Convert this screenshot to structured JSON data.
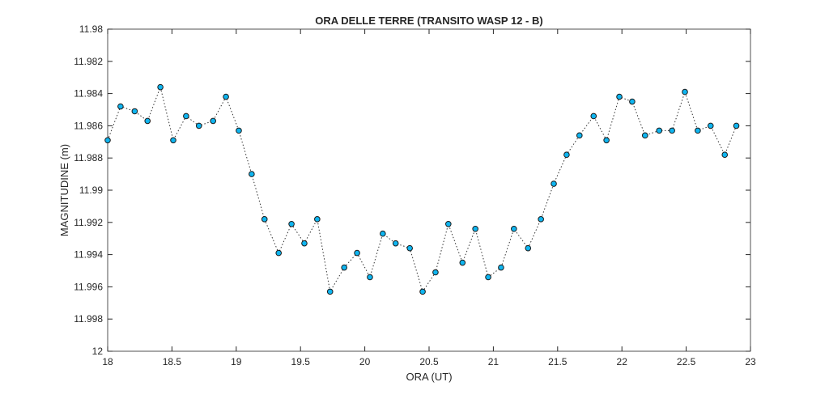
{
  "chart_data": {
    "type": "line",
    "title": "ORA DELLE TERRE (TRANSITO WASP 12 - B)",
    "x_label": "ORA (UT)",
    "y_label": "MAGNITUDINE (m)",
    "x": [
      18.0,
      18.1,
      18.21,
      18.31,
      18.41,
      18.51,
      18.61,
      18.71,
      18.82,
      18.92,
      19.02,
      19.12,
      19.22,
      19.33,
      19.43,
      19.53,
      19.63,
      19.73,
      19.84,
      19.94,
      20.04,
      20.14,
      20.24,
      20.35,
      20.45,
      20.55,
      20.65,
      20.76,
      20.86,
      20.96,
      21.06,
      21.16,
      21.27,
      21.37,
      21.47,
      21.57,
      21.67,
      21.78,
      21.88,
      21.98,
      22.08,
      22.18,
      22.29,
      22.39,
      22.49,
      22.59,
      22.69,
      22.8,
      22.89
    ],
    "series": [
      {
        "name": "WASP 12 - B",
        "color": "#0fb5f0",
        "line_color": "#333333",
        "values": [
          11.9869,
          11.9848,
          11.9851,
          11.9857,
          11.9836,
          11.9869,
          11.9854,
          11.986,
          11.9857,
          11.9842,
          11.9863,
          11.989,
          11.9918,
          11.9939,
          11.9921,
          11.9933,
          11.9918,
          11.9963,
          11.9948,
          11.9939,
          11.9954,
          11.9927,
          11.9933,
          11.9936,
          11.9963,
          11.9951,
          11.9921,
          11.9945,
          11.9924,
          11.9954,
          11.9948,
          11.9924,
          11.9936,
          11.9918,
          11.9896,
          11.9878,
          11.9866,
          11.9854,
          11.9869,
          11.9842,
          11.9845,
          11.9866,
          11.9863,
          11.9863,
          11.9839,
          11.9863,
          11.986,
          11.9878,
          11.986
        ]
      }
    ],
    "xlim": [
      18,
      23
    ],
    "xticks": [
      18,
      18.5,
      19,
      19.5,
      20,
      20.5,
      21,
      21.5,
      22,
      22.5,
      23
    ],
    "ylim": [
      11.98,
      12
    ],
    "yticks": [
      11.98,
      11.982,
      11.984,
      11.986,
      11.988,
      11.99,
      11.992,
      11.994,
      11.996,
      11.998,
      12
    ],
    "y_reversed": true,
    "grid": false
  }
}
